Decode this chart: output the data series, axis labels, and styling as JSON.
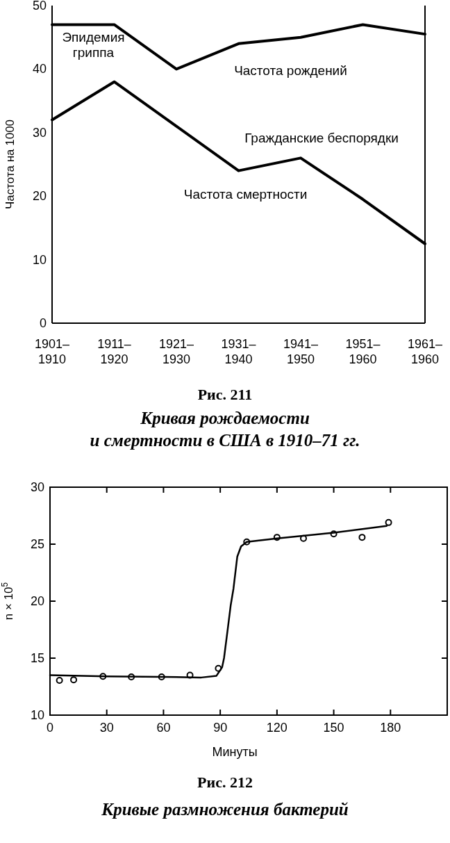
{
  "chart_data": [
    {
      "type": "line",
      "title": "Рис. 211",
      "subtitle": "Кривая рождаемости\nи смертности в США в 1910–71 гг.",
      "ylabel": "Частота на 1000",
      "categories": [
        "1901–\n1910",
        "1911–\n1920",
        "1921–\n1930",
        "1931–\n1940",
        "1941–\n1950",
        "1951–\n1960",
        "1961–\n1960"
      ],
      "series": [
        {
          "name": "Частота рождений",
          "color": "#000000",
          "values": [
            47,
            47,
            40,
            44,
            45,
            47,
            45.5
          ]
        },
        {
          "name": "Частота смертности",
          "color": "#000000",
          "values": [
            32,
            38,
            31,
            24,
            26,
            19.5,
            12.5
          ]
        }
      ],
      "annotations": [
        {
          "text": "Эпидемия\nгриппа",
          "x": "1911–\n1920",
          "y": 38
        },
        {
          "text": "Гражданские беспорядки",
          "x": "1941–\n1950",
          "y": 26
        }
      ],
      "ylim": [
        0,
        50
      ],
      "yticks": [
        0,
        10,
        20,
        30,
        40,
        50
      ],
      "grid": false,
      "marker": "none",
      "line_style": "solid"
    },
    {
      "type": "line",
      "title": "Рис. 212",
      "subtitle": "Кривые размножения бактерий",
      "xlabel": "Минуты",
      "ylabel": "n × 10$^{5}$",
      "series": [
        {
          "type": "scatter",
          "color": "#000000",
          "marker": "circle",
          "x": [
            5,
            12.5,
            28,
            43,
            59,
            74,
            89,
            104,
            120,
            134,
            150,
            165,
            179
          ],
          "values": [
            13.05,
            13.1,
            13.4,
            13.35,
            13.35,
            13.5,
            14.1,
            25.2,
            25.6,
            25.5,
            25.9,
            25.6,
            26.9
          ]
        },
        {
          "color": "#000000",
          "marker": "none",
          "x": [
            0,
            30,
            60,
            80,
            88,
            91,
            92,
            94,
            95.5,
            97,
            99,
            101,
            104,
            120,
            150,
            178
          ],
          "values": [
            13.5,
            13.4,
            13.35,
            13.3,
            13.45,
            14.2,
            15,
            17.6,
            19.6,
            21.1,
            23.9,
            24.8,
            25.2,
            25.5,
            26,
            26.6
          ]
        }
      ],
      "xlim": [
        0,
        210
      ],
      "xticks": [
        0,
        30,
        60,
        90,
        120,
        150,
        180
      ],
      "ylim": [
        10,
        30
      ],
      "yticks": [
        10,
        15,
        20,
        25,
        30
      ],
      "grid": false,
      "line_style": "solid"
    }
  ]
}
